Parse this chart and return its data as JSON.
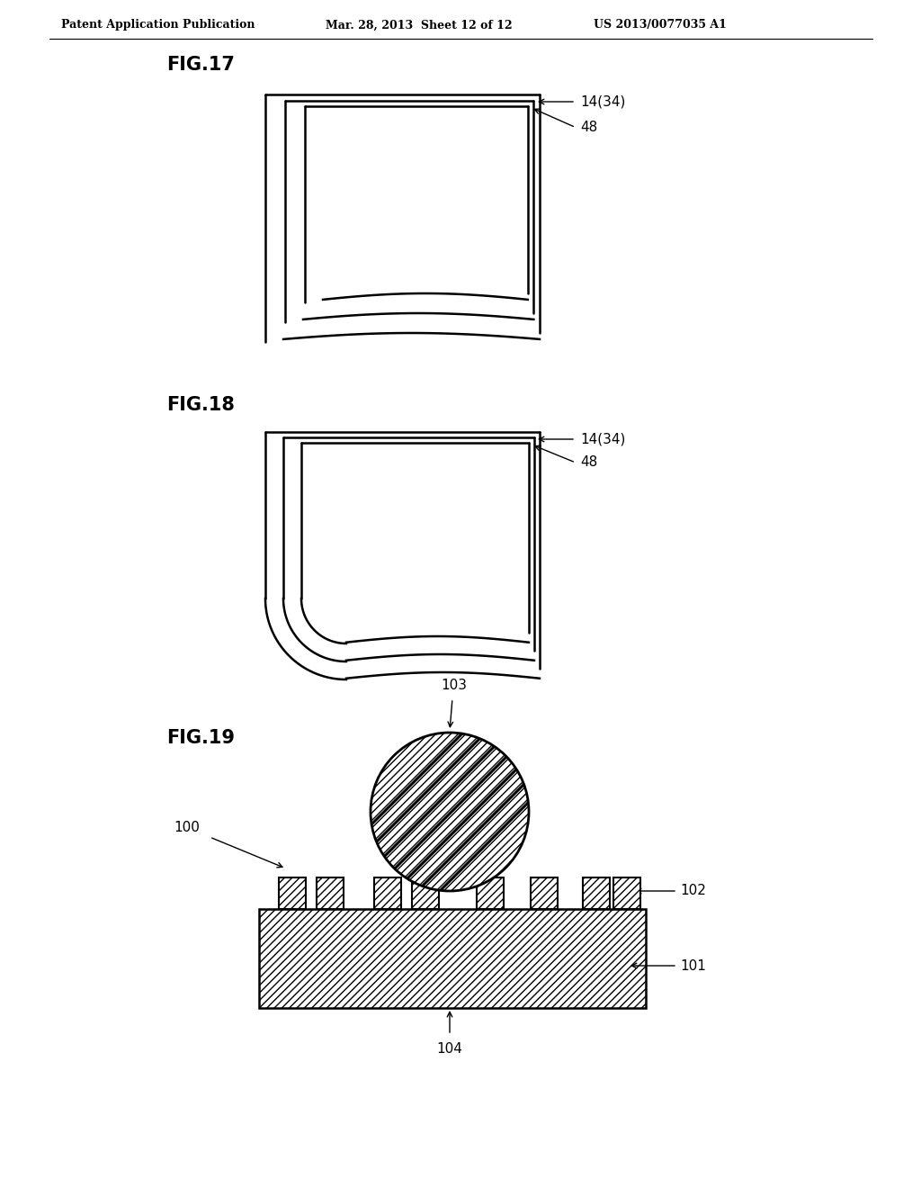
{
  "header_left": "Patent Application Publication",
  "header_mid": "Mar. 28, 2013  Sheet 12 of 12",
  "header_right": "US 2013/0077035 A1",
  "header_fontsize": 9,
  "fig17_label": "FIG.17",
  "fig18_label": "FIG.18",
  "fig19_label": "FIG.19",
  "label_14_34": "14(34)",
  "label_48": "48",
  "label_100": "100",
  "label_101": "101",
  "label_102": "102",
  "label_103": "103",
  "label_104": "104",
  "bg_color": "#ffffff",
  "line_color": "#000000",
  "fig_label_fontsize": 15,
  "annotation_fontsize": 11
}
